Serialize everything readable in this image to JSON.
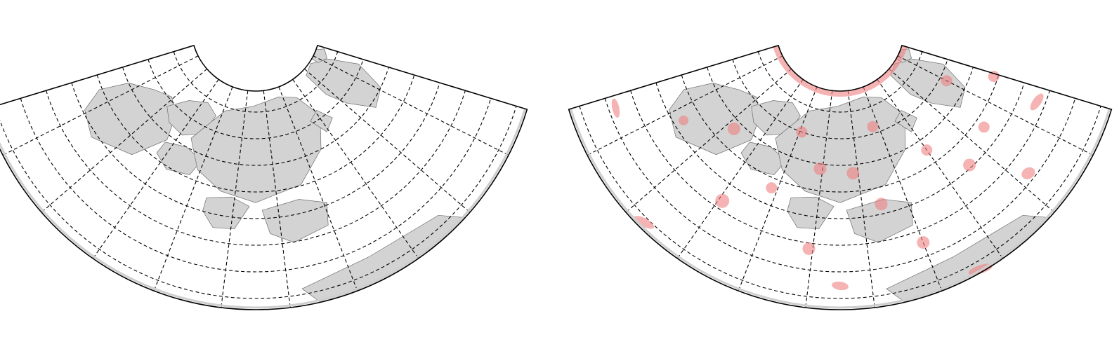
{
  "panels": [
    {
      "name": "left-map",
      "projection": "conic",
      "graticule": "dashed",
      "land_color": "#d3d3d3",
      "show_indicatrix": false
    },
    {
      "name": "right-map",
      "projection": "conic",
      "graticule": "dashed",
      "land_color": "#d3d3d3",
      "show_indicatrix": true,
      "indicatrix_color": "#f08080"
    }
  ]
}
